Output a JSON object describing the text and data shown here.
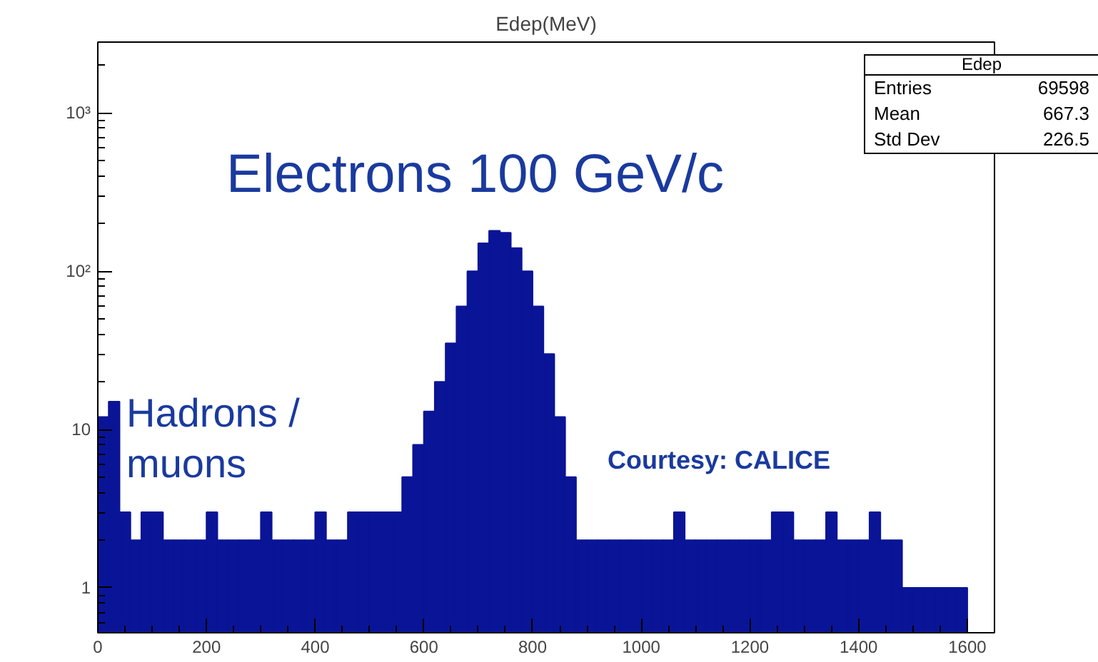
{
  "chart_data": {
    "type": "histogram",
    "title": "Edep(MeV)",
    "bins": [
      0,
      20,
      40,
      60,
      80,
      100,
      120,
      140,
      160,
      180,
      200,
      220,
      240,
      260,
      280,
      300,
      320,
      340,
      360,
      380,
      400,
      420,
      440,
      460,
      480,
      500,
      520,
      540,
      560,
      580,
      600,
      620,
      640,
      660,
      680,
      700,
      720,
      740,
      760,
      780,
      800,
      820,
      840,
      860,
      880,
      900,
      920,
      940,
      960,
      980,
      1000,
      1020,
      1040,
      1060,
      1080,
      1100,
      1120,
      1140,
      1160,
      1180,
      1200,
      1220,
      1240,
      1260,
      1280,
      1300,
      1320,
      1340,
      1360,
      1380,
      1400,
      1420,
      1440,
      1460,
      1480,
      1500,
      1520,
      1540,
      1560,
      1580,
      1600
    ],
    "values": [
      12,
      15,
      3,
      2,
      3,
      3,
      2,
      2,
      2,
      2,
      3,
      2,
      2,
      2,
      2,
      3,
      2,
      2,
      2,
      2,
      3,
      2,
      2,
      3,
      3,
      3,
      3,
      3,
      5,
      8,
      13,
      20,
      35,
      60,
      100,
      150,
      180,
      175,
      140,
      100,
      60,
      30,
      12,
      5,
      2,
      2,
      2,
      2,
      2,
      2,
      2,
      2,
      2,
      3,
      2,
      2,
      2,
      2,
      2,
      2,
      2,
      2,
      3,
      3,
      2,
      2,
      2,
      3,
      2,
      2,
      2,
      3,
      2,
      2,
      1,
      1,
      1,
      1,
      1,
      1
    ],
    "color": "#0a1496",
    "xlim": [
      0,
      1650
    ],
    "xticks": [
      0,
      200,
      400,
      600,
      800,
      1000,
      1200,
      1400,
      1600
    ],
    "ylim": [
      0.52,
      2800
    ],
    "log": true,
    "yticks": [
      {
        "value": 1,
        "label": "1"
      },
      {
        "value": 10,
        "label": "10"
      },
      {
        "value": 100,
        "label": "10²"
      },
      {
        "value": 1000,
        "label": "10³"
      }
    ],
    "grid": false,
    "annotations": [
      "Electrons 100 GeV/c",
      "Hadrons / muons",
      "Courtesy: CALICE",
      "Edep",
      "Entries 69598",
      "Mean 667.3",
      "Std Dev 226.5"
    ]
  }
}
